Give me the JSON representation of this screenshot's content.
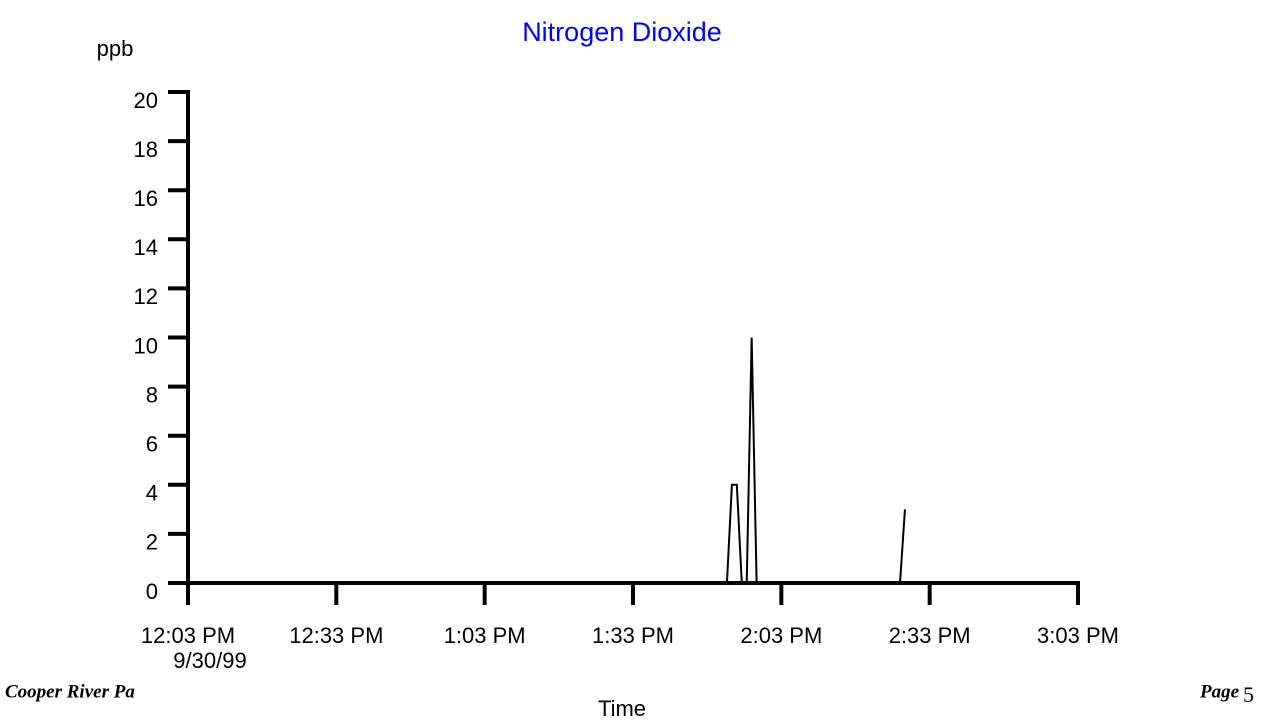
{
  "chart_data": {
    "type": "line",
    "title": "Nitrogen Dioxide",
    "y_label": "ppb",
    "x_label": "Time",
    "date_label": "9/30/99",
    "x": [
      0,
      109,
      110,
      111,
      112,
      113,
      114,
      115,
      144,
      145
    ],
    "series": [
      {
        "color": "#000000",
        "values": [
          0,
          0,
          4,
          4,
          0,
          0,
          10,
          0,
          0,
          3
        ]
      }
    ],
    "xlim": [
      0,
      180
    ],
    "xticks": [
      {
        "value": 0,
        "label": "12:03 PM"
      },
      {
        "value": 30,
        "label": "12:33 PM"
      },
      {
        "value": 60,
        "label": "1:03 PM"
      },
      {
        "value": 90,
        "label": "1:33 PM"
      },
      {
        "value": 120,
        "label": "2:03 PM"
      },
      {
        "value": 150,
        "label": "2:33 PM"
      },
      {
        "value": 180,
        "label": "3:03 PM"
      }
    ],
    "ylim": [
      0,
      20
    ],
    "yticks": [
      0,
      2,
      4,
      6,
      8,
      10,
      12,
      14,
      16,
      18,
      20
    ],
    "grid": false
  },
  "footer": {
    "left": "Cooper River Pa",
    "page_label": "Page",
    "page_number": "5"
  }
}
